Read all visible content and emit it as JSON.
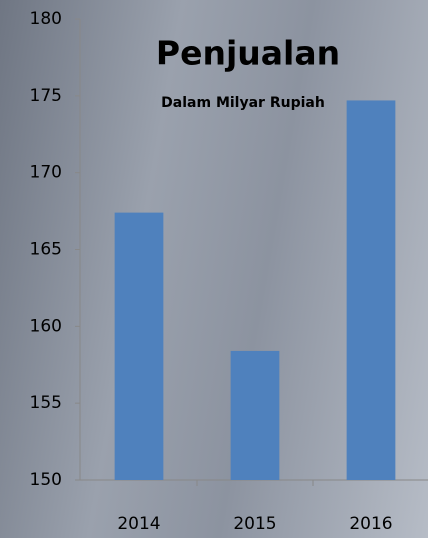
{
  "chart_data": {
    "type": "bar",
    "title": "Penjualan",
    "subtitle": "Dalam Milyar Rupiah",
    "categories": [
      "2014",
      "2015",
      "2016"
    ],
    "values": [
      167.4,
      158.4,
      174.7
    ],
    "color": "#4f81bd",
    "ylim": [
      150,
      180
    ],
    "yticks": [
      150,
      155,
      160,
      165,
      170,
      175,
      180
    ],
    "grid": false
  }
}
